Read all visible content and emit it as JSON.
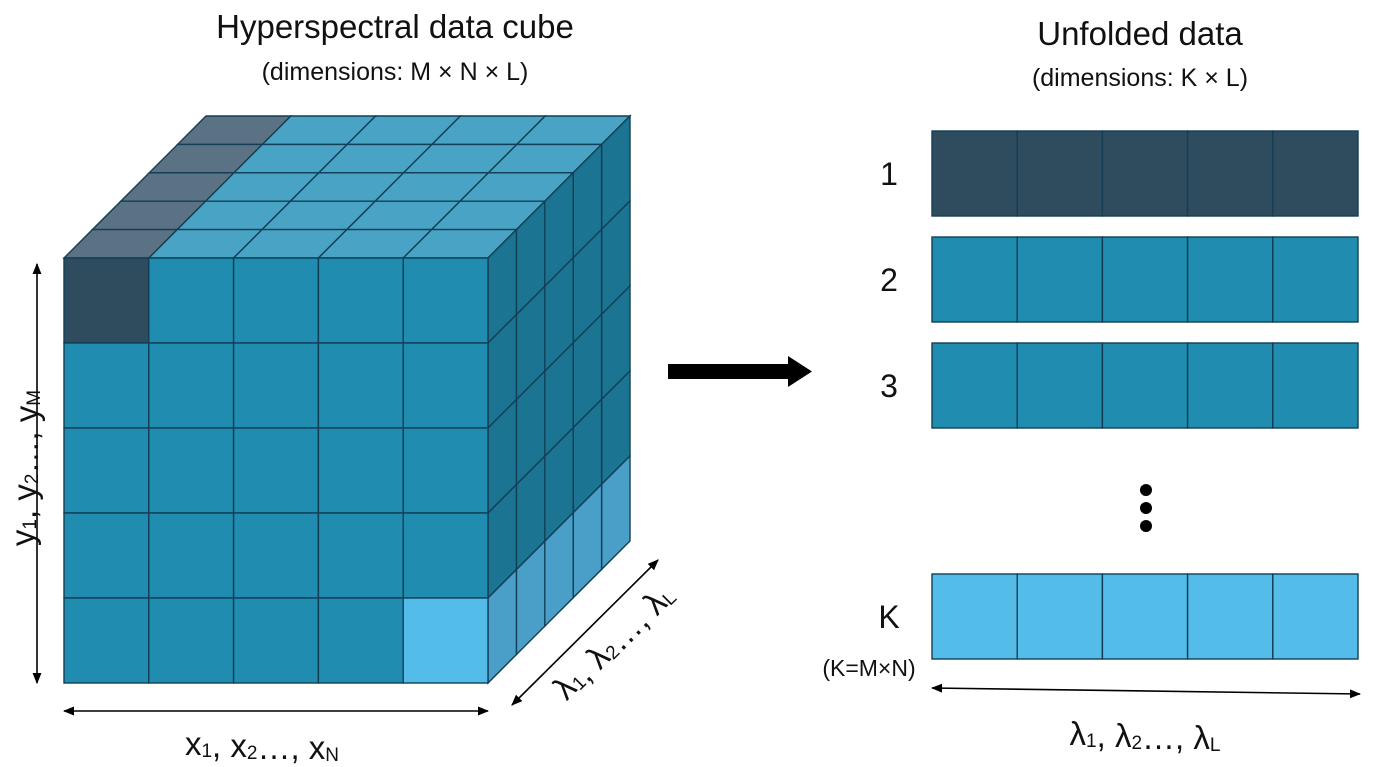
{
  "colors": {
    "dark_pixel": "#2f4b5e",
    "dark_pixel_top": "#5a7283",
    "base_front": "#1f8cb0",
    "base_top": "#48a3c4",
    "base_side": "#1b7491",
    "light_pixel": "#53bce9",
    "light_side": "#4a9fc9",
    "outline": "#123f56",
    "arrow": "#000000"
  },
  "cube": {
    "title": "Hyperspectral data cube",
    "subtitle": "(dimensions: M × N × L)",
    "y_axis": {
      "main": "y",
      "sub": [
        "1",
        "2",
        "M"
      ],
      "sep": ", ",
      "ellipsis": "…"
    },
    "x_axis": {
      "main": "x",
      "sub": [
        "1",
        "2",
        "N"
      ],
      "sep": ", ",
      "ellipsis": "…"
    },
    "lambda_axis": {
      "main": "λ",
      "sub": [
        "1",
        "2",
        "L"
      ],
      "sep": ", ",
      "ellipsis": "…"
    },
    "grid": {
      "columns": 5,
      "rows": 5,
      "layers": 5
    }
  },
  "transform_arrow": {
    "icon": "right-arrow-icon"
  },
  "unfolded": {
    "title": "Unfolded data",
    "subtitle": "(dimensions: K × L)",
    "rows": [
      {
        "label": "1",
        "tone": "dark"
      },
      {
        "label": "2",
        "tone": "base"
      },
      {
        "label": "3",
        "tone": "base"
      },
      {
        "label": "K",
        "tone": "light",
        "note": "(K=M×N)"
      }
    ],
    "cells_per_row": 5,
    "ellipsis_icon": "vertical-ellipsis-icon",
    "lambda_axis": {
      "main": "λ",
      "sub": [
        "1",
        "2",
        "L"
      ],
      "sep": ", ",
      "ellipsis": "…"
    }
  }
}
